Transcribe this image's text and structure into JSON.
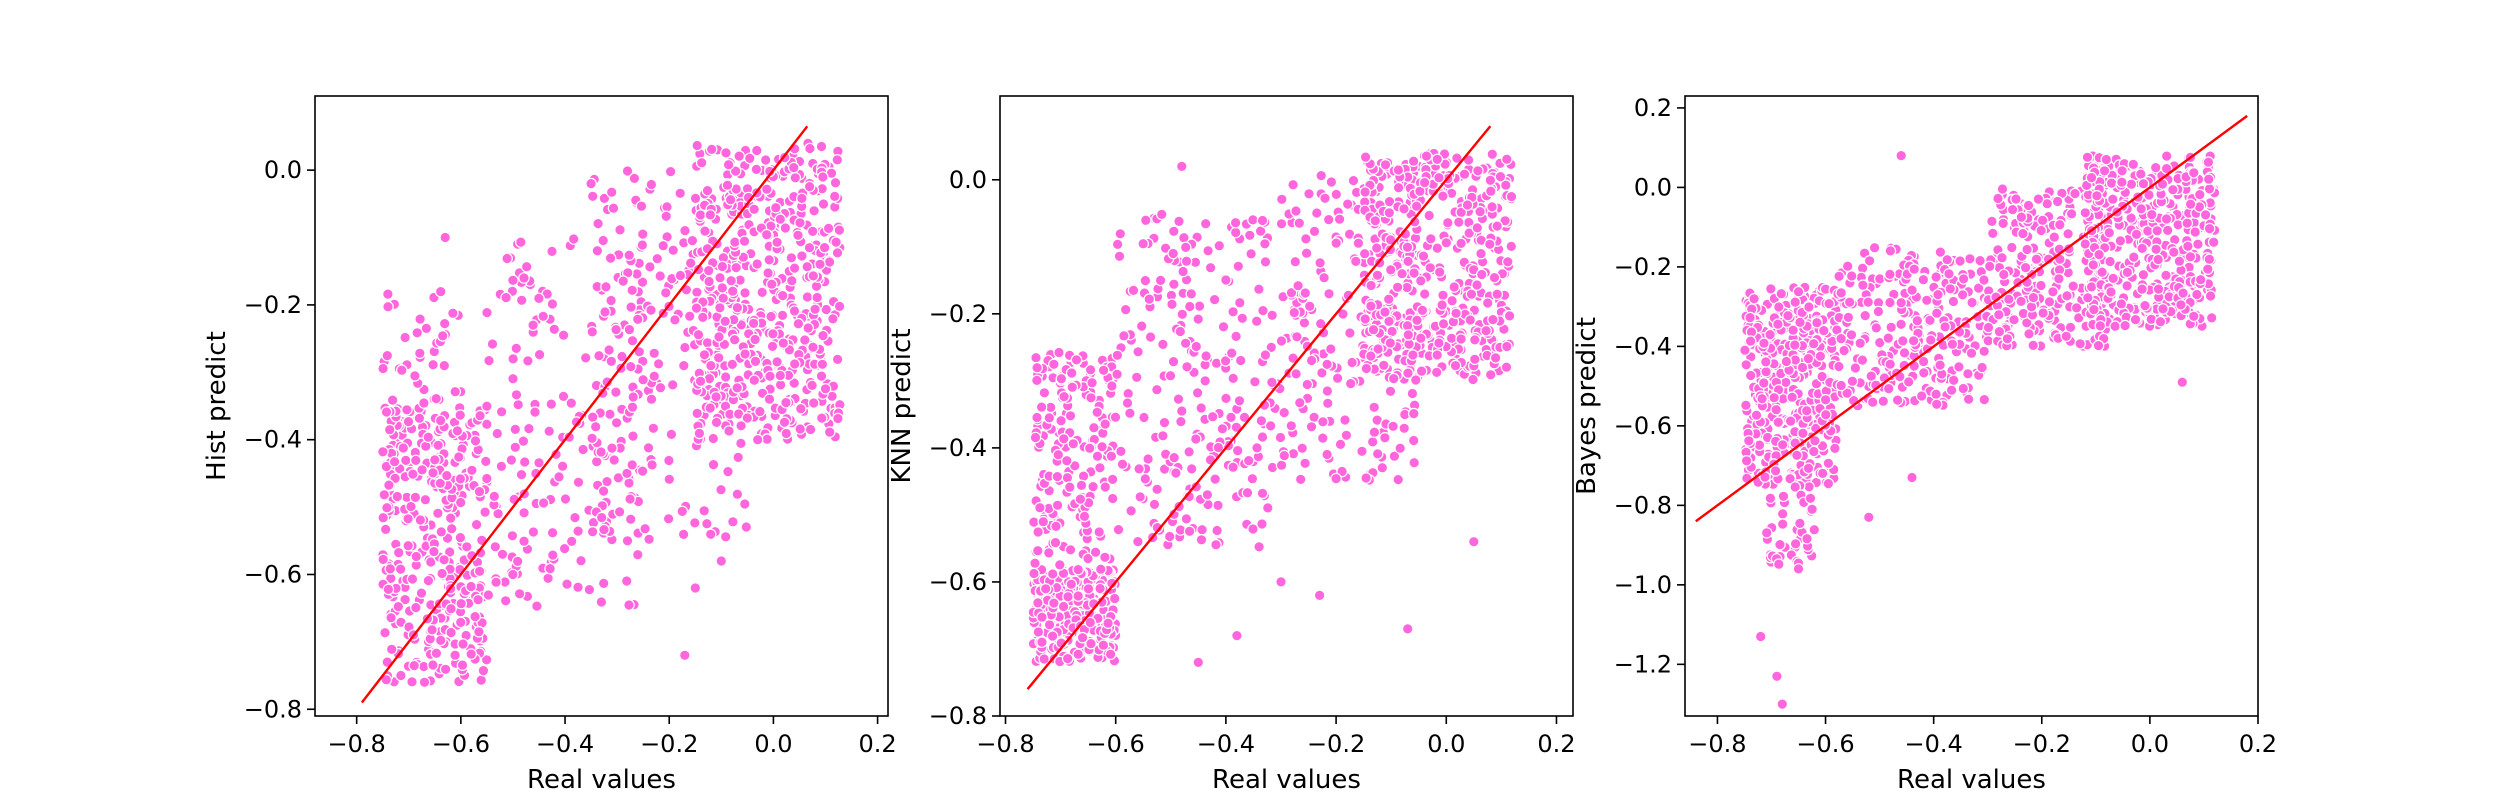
{
  "chart_data": [
    {
      "type": "scatter",
      "title": "",
      "xlabel": "Real values",
      "ylabel": "Hist predict",
      "xlim": [
        -0.88,
        0.22
      ],
      "ylim": [
        -0.81,
        0.11
      ],
      "xticks": [
        -0.8,
        -0.6,
        -0.4,
        -0.2,
        0.0,
        0.2
      ],
      "yticks": [
        -0.8,
        -0.6,
        -0.4,
        -0.2,
        0.0
      ],
      "xtick_labels": [
        "−0.8",
        "−0.6",
        "−0.4",
        "−0.2",
        "0.0",
        "0.2"
      ],
      "ytick_labels": [
        "−0.8",
        "−0.6",
        "−0.4",
        "−0.2",
        "0.0"
      ],
      "grid": false,
      "point_color": "#ff66dd",
      "reference_line": {
        "x": [
          -0.79,
          0.065
        ],
        "y": [
          -0.79,
          0.065
        ],
        "color": "#ff0000"
      },
      "clusters": [
        {
          "x": [
            -0.75,
            -0.55
          ],
          "y": [
            -0.76,
            -0.35
          ],
          "n": 330
        },
        {
          "x": [
            -0.75,
            -0.6
          ],
          "y": [
            -0.5,
            -0.18
          ],
          "n": 70
        },
        {
          "x": [
            -0.55,
            -0.25
          ],
          "y": [
            -0.65,
            -0.1
          ],
          "n": 170
        },
        {
          "x": [
            -0.35,
            -0.05
          ],
          "y": [
            -0.55,
            0.0
          ],
          "n": 200
        },
        {
          "x": [
            -0.15,
            0.13
          ],
          "y": [
            -0.4,
            0.04
          ],
          "n": 520
        }
      ],
      "outliers": [
        [
          -0.63,
          -0.1
        ],
        [
          -0.17,
          -0.72
        ],
        [
          -0.15,
          -0.62
        ],
        [
          -0.35,
          -0.02
        ],
        [
          -0.5,
          -0.6
        ],
        [
          -0.1,
          -0.58
        ],
        [
          -0.28,
          -0.55
        ]
      ]
    },
    {
      "type": "scatter",
      "title": "",
      "xlabel": "Real values",
      "ylabel": "KNN predict",
      "xlim": [
        -0.81,
        0.23
      ],
      "ylim": [
        -0.8,
        0.125
      ],
      "xticks": [
        -0.8,
        -0.6,
        -0.4,
        -0.2,
        0.0,
        0.2
      ],
      "yticks": [
        -0.8,
        -0.6,
        -0.4,
        -0.2,
        0.0
      ],
      "xtick_labels": [
        "−0.8",
        "−0.6",
        "−0.4",
        "−0.2",
        "0.0",
        "0.2"
      ],
      "ytick_labels": [
        "−0.8",
        "−0.6",
        "−0.4",
        "−0.2",
        "0.0"
      ],
      "grid": false,
      "point_color": "#ff66dd",
      "reference_line": {
        "x": [
          -0.76,
          0.08
        ],
        "y": [
          -0.76,
          0.08
        ],
        "color": "#ff0000"
      },
      "clusters": [
        {
          "x": [
            -0.75,
            -0.6
          ],
          "y": [
            -0.72,
            -0.58
          ],
          "n": 260
        },
        {
          "x": [
            -0.75,
            -0.6
          ],
          "y": [
            -0.58,
            -0.25
          ],
          "n": 180
        },
        {
          "x": [
            -0.6,
            -0.3
          ],
          "y": [
            -0.55,
            -0.05
          ],
          "n": 240
        },
        {
          "x": [
            -0.3,
            -0.05
          ],
          "y": [
            -0.45,
            0.02
          ],
          "n": 220
        },
        {
          "x": [
            -0.15,
            0.12
          ],
          "y": [
            -0.3,
            0.04
          ],
          "n": 450
        }
      ],
      "outliers": [
        [
          -0.48,
          0.02
        ],
        [
          -0.07,
          -0.67
        ],
        [
          -0.23,
          -0.62
        ],
        [
          -0.3,
          -0.6
        ],
        [
          0.05,
          -0.54
        ],
        [
          -0.45,
          -0.72
        ],
        [
          -0.38,
          -0.68
        ]
      ]
    },
    {
      "type": "scatter",
      "title": "",
      "xlabel": "Real values",
      "ylabel": "Bayes predict",
      "xlim": [
        -0.86,
        0.2
      ],
      "ylim": [
        -1.33,
        0.23
      ],
      "xticks": [
        -0.8,
        -0.6,
        -0.4,
        -0.2,
        0.0,
        0.2
      ],
      "yticks": [
        -1.2,
        -1.0,
        -0.8,
        -0.6,
        -0.4,
        -0.2,
        0.0,
        0.2
      ],
      "xtick_labels": [
        "−0.8",
        "−0.6",
        "−0.4",
        "−0.2",
        "0.0",
        "0.2"
      ],
      "ytick_labels": [
        "−1.2",
        "−1.0",
        "−0.8",
        "−0.6",
        "−0.4",
        "−0.2",
        "0.0",
        "0.2"
      ],
      "grid": false,
      "point_color": "#ff66dd",
      "reference_line": {
        "x": [
          -0.84,
          0.18
        ],
        "y": [
          -0.84,
          0.18
        ],
        "color": "#ff0000"
      },
      "clusters": [
        {
          "x": [
            -0.75,
            -0.58
          ],
          "y": [
            -0.75,
            -0.25
          ],
          "n": 420
        },
        {
          "x": [
            -0.72,
            -0.62
          ],
          "y": [
            -0.95,
            -0.75
          ],
          "n": 45
        },
        {
          "x": [
            -0.58,
            -0.3
          ],
          "y": [
            -0.55,
            -0.15
          ],
          "n": 260
        },
        {
          "x": [
            -0.3,
            -0.08
          ],
          "y": [
            -0.4,
            0.0
          ],
          "n": 260
        },
        {
          "x": [
            -0.12,
            0.12
          ],
          "y": [
            -0.35,
            0.08
          ],
          "n": 420
        }
      ],
      "outliers": [
        [
          -0.68,
          -1.3
        ],
        [
          -0.69,
          -1.23
        ],
        [
          -0.72,
          -1.13
        ],
        [
          -0.46,
          0.08
        ],
        [
          -0.44,
          -0.73
        ],
        [
          0.06,
          -0.49
        ],
        [
          -0.52,
          -0.83
        ],
        [
          -0.65,
          -0.96
        ]
      ]
    }
  ]
}
